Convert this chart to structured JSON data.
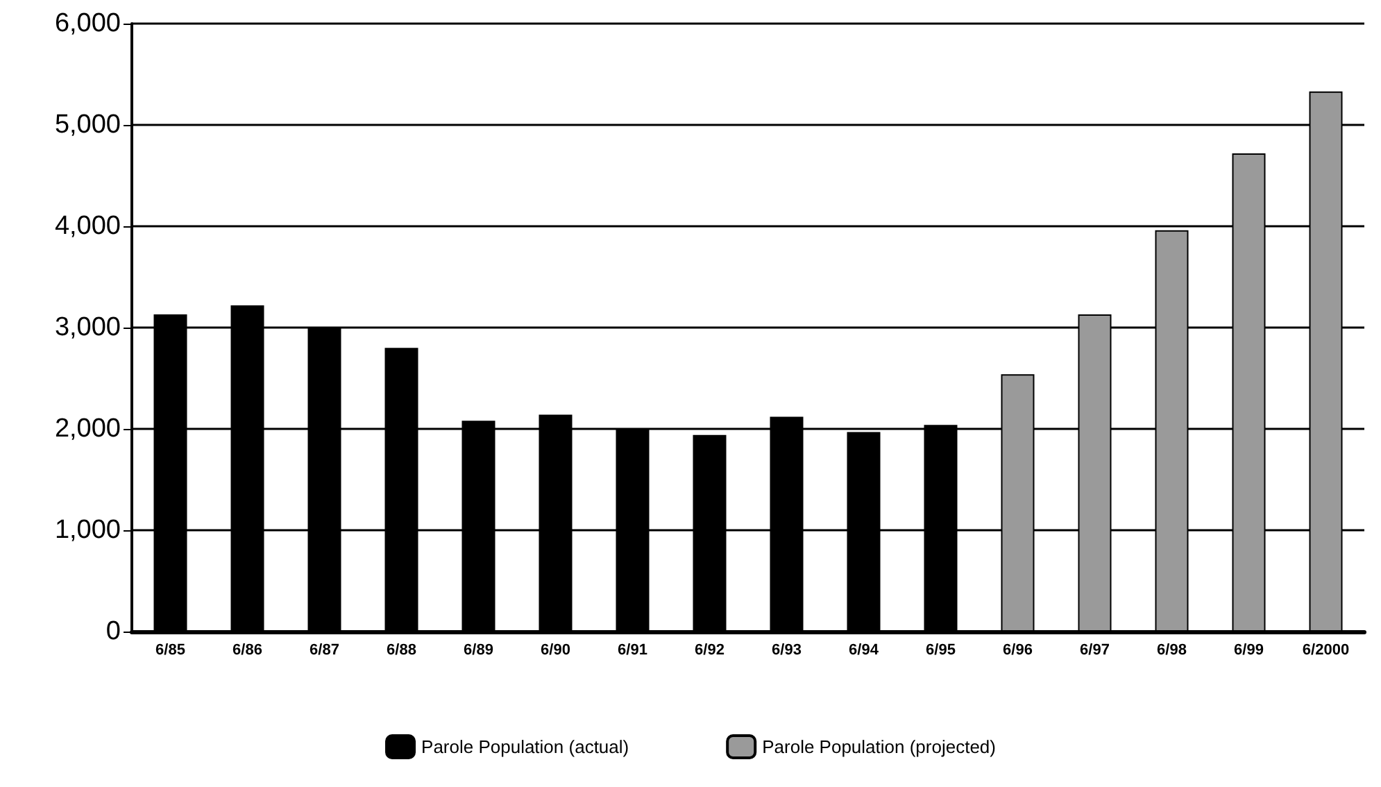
{
  "chart_data": {
    "type": "bar",
    "categories": [
      "6/85",
      "6/86",
      "6/87",
      "6/88",
      "6/89",
      "6/90",
      "6/91",
      "6/92",
      "6/93",
      "6/94",
      "6/95",
      "6/96",
      "6/97",
      "6/98",
      "6/99",
      "6/2000"
    ],
    "series": [
      {
        "name": "Parole Population (actual)",
        "color": "#000000",
        "values": [
          3130,
          3220,
          3000,
          2800,
          2080,
          2140,
          2000,
          1940,
          2120,
          1970,
          2040,
          null,
          null,
          null,
          null,
          null
        ]
      },
      {
        "name": "Parole Population (projected)",
        "color": "#9a9a9a",
        "values": [
          null,
          null,
          null,
          null,
          null,
          null,
          null,
          null,
          null,
          null,
          null,
          2540,
          3130,
          3960,
          4720,
          5330
        ]
      }
    ],
    "ylim": [
      0,
      6000
    ],
    "yticks": [
      {
        "value": 0,
        "label": "0"
      },
      {
        "value": 1000,
        "label": "1,000"
      },
      {
        "value": 2000,
        "label": "2,000"
      },
      {
        "value": 3000,
        "label": "3,000"
      },
      {
        "value": 4000,
        "label": "4,000"
      },
      {
        "value": 5000,
        "label": "5,000"
      },
      {
        "value": 6000,
        "label": "6,000"
      }
    ],
    "grid": "y",
    "legend": "bottom"
  }
}
